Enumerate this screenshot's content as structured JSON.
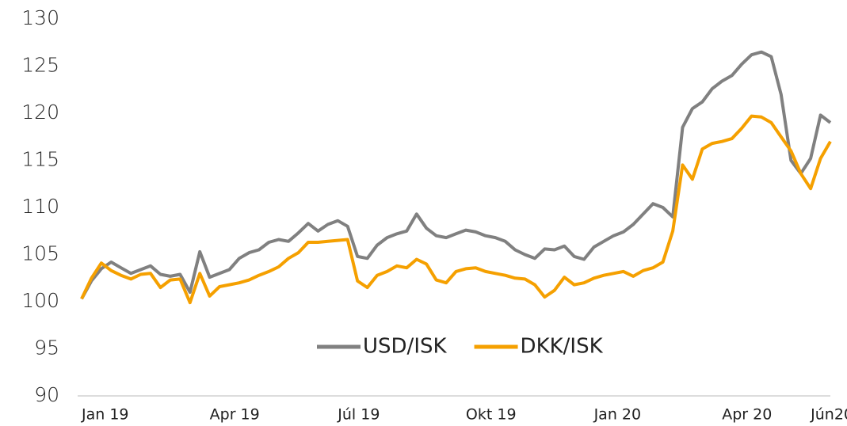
{
  "chart_data": {
    "type": "line",
    "categories": [
      "Jan 19",
      null,
      null,
      null,
      null,
      null,
      null,
      null,
      null,
      null,
      null,
      null,
      null,
      "Apr 19",
      null,
      null,
      null,
      null,
      null,
      null,
      null,
      null,
      null,
      null,
      null,
      null,
      "Júl 19",
      null,
      null,
      null,
      null,
      null,
      null,
      null,
      null,
      null,
      null,
      null,
      null,
      "Okt 19",
      null,
      null,
      null,
      null,
      null,
      null,
      null,
      null,
      null,
      null,
      null,
      null,
      "Jan 20",
      null,
      null,
      null,
      null,
      null,
      null,
      null,
      null,
      null,
      null,
      null,
      null,
      "Apr 20",
      null,
      null,
      null,
      null,
      null,
      null,
      null,
      null,
      "Jún20",
      null,
      null
    ],
    "series": [
      {
        "name": "USD/ISK",
        "color": "#808080",
        "values": [
          100.3,
          102.2,
          103.5,
          104.2,
          103.6,
          103.0,
          103.4,
          103.8,
          102.9,
          102.7,
          102.9,
          101.0,
          105.3,
          102.6,
          103.0,
          103.4,
          104.6,
          105.2,
          105.5,
          106.3,
          106.6,
          106.4,
          107.3,
          108.3,
          107.5,
          108.2,
          108.6,
          108.0,
          104.8,
          104.6,
          106.0,
          106.8,
          107.2,
          107.5,
          109.3,
          107.8,
          107.0,
          106.8,
          107.2,
          107.6,
          107.4,
          107.0,
          106.8,
          106.4,
          105.5,
          105.0,
          104.6,
          105.6,
          105.5,
          105.9,
          104.8,
          104.5,
          105.8,
          106.4,
          107.0,
          107.4,
          108.2,
          109.3,
          110.4,
          110.0,
          109.0,
          118.5,
          120.5,
          121.2,
          122.6,
          123.4,
          124.0,
          125.2,
          126.2,
          126.5,
          126.0,
          122.0,
          115.0,
          113.6,
          115.2,
          119.8,
          119.0
        ]
      },
      {
        "name": "DKK/ISK",
        "color": "#f5a000",
        "values": [
          100.3,
          102.5,
          104.1,
          103.3,
          102.8,
          102.4,
          102.9,
          103.0,
          101.5,
          102.3,
          102.4,
          99.9,
          103.0,
          100.6,
          101.6,
          101.8,
          102.0,
          102.3,
          102.8,
          103.2,
          103.7,
          104.6,
          105.2,
          106.3,
          106.3,
          106.4,
          106.5,
          106.6,
          102.2,
          101.5,
          102.8,
          103.2,
          103.8,
          103.6,
          104.5,
          104.0,
          102.3,
          102.0,
          103.2,
          103.5,
          103.6,
          103.2,
          103.0,
          102.8,
          102.5,
          102.4,
          101.8,
          100.5,
          101.2,
          102.6,
          101.8,
          102.0,
          102.5,
          102.8,
          103.0,
          103.2,
          102.7,
          103.3,
          103.6,
          104.2,
          107.5,
          114.5,
          113.0,
          116.2,
          116.8,
          117.0,
          117.3,
          118.4,
          119.7,
          119.6,
          119.0,
          117.5,
          116.0,
          113.6,
          112.0,
          115.2,
          117.0
        ]
      }
    ],
    "ylim": [
      90,
      130
    ],
    "yticks": [
      90,
      95,
      100,
      105,
      110,
      115,
      120,
      125,
      130
    ],
    "grid": false,
    "legend": "lower center"
  }
}
